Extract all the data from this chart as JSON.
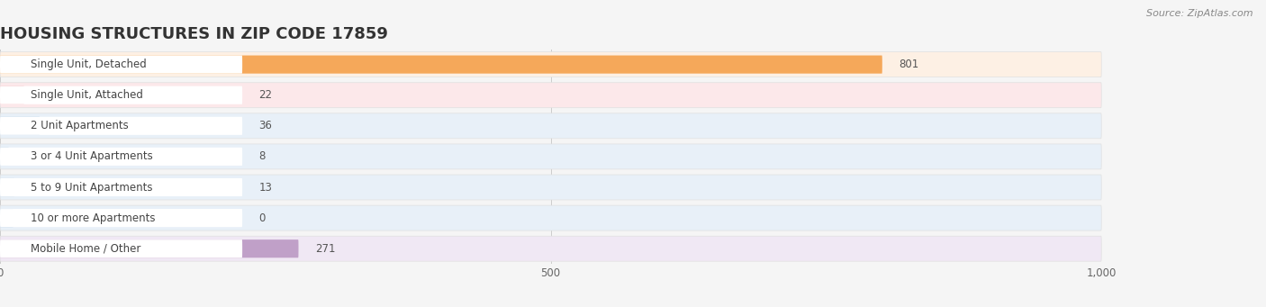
{
  "title": "HOUSING STRUCTURES IN ZIP CODE 17859",
  "source": "Source: ZipAtlas.com",
  "categories": [
    "Single Unit, Detached",
    "Single Unit, Attached",
    "2 Unit Apartments",
    "3 or 4 Unit Apartments",
    "5 to 9 Unit Apartments",
    "10 or more Apartments",
    "Mobile Home / Other"
  ],
  "values": [
    801,
    22,
    36,
    8,
    13,
    0,
    271
  ],
  "bar_colors": [
    "#f5a85a",
    "#f0a0a8",
    "#a0bedd",
    "#a0bedd",
    "#a0bedd",
    "#a0bedd",
    "#c0a0c8"
  ],
  "bg_colors": [
    "#fdf0e4",
    "#fce8ea",
    "#e8f0f8",
    "#e8f0f8",
    "#e8f0f8",
    "#e8f0f8",
    "#f0e8f4"
  ],
  "pill_color": "#ffffff",
  "xlim": [
    0,
    1000
  ],
  "xticks": [
    0,
    500,
    1000
  ],
  "xtick_labels": [
    "0",
    "500",
    "1,000"
  ],
  "background_color": "#f5f5f5",
  "title_fontsize": 13,
  "label_fontsize": 8.5,
  "value_fontsize": 8.5,
  "source_fontsize": 8
}
